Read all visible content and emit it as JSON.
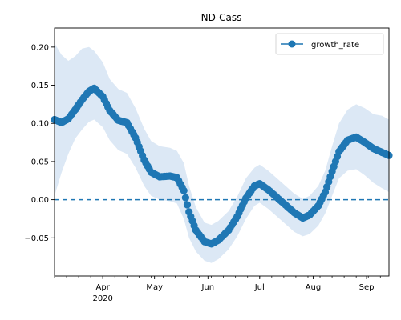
{
  "chart_data": {
    "type": "line",
    "title": "ND-Cass",
    "xlabel": "",
    "ylabel": "",
    "x_start": "2020-03-04",
    "x_end": "2020-09-14",
    "x_ticks": [
      {
        "date": "2020-04-01",
        "label": "Apr",
        "sublabel": "2020"
      },
      {
        "date": "2020-05-01",
        "label": "May",
        "sublabel": ""
      },
      {
        "date": "2020-06-01",
        "label": "Jun",
        "sublabel": ""
      },
      {
        "date": "2020-07-01",
        "label": "Jul",
        "sublabel": ""
      },
      {
        "date": "2020-08-01",
        "label": "Aug",
        "sublabel": ""
      },
      {
        "date": "2020-09-01",
        "label": "Sep",
        "sublabel": ""
      }
    ],
    "ylim": [
      -0.1,
      0.225
    ],
    "y_ticks": [
      {
        "value": -0.05,
        "label": "−0.05"
      },
      {
        "value": 0.0,
        "label": "0.00"
      },
      {
        "value": 0.05,
        "label": "0.05"
      },
      {
        "value": 0.1,
        "label": "0.10"
      },
      {
        "value": 0.15,
        "label": "0.15"
      },
      {
        "value": 0.2,
        "label": "0.20"
      }
    ],
    "reference_line": {
      "y": 0.0,
      "style": "dashed"
    },
    "grid": false,
    "legend": {
      "placement": "top-right",
      "entries": [
        "growth_rate"
      ]
    },
    "colors": {
      "line": "#1f77b4",
      "band": "#dce8f5"
    },
    "series": [
      {
        "name": "growth_rate",
        "marker": "circle",
        "x": [
          "2020-03-04",
          "2020-03-08",
          "2020-03-12",
          "2020-03-16",
          "2020-03-20",
          "2020-03-24",
          "2020-03-27",
          "2020-04-01",
          "2020-04-05",
          "2020-04-10",
          "2020-04-15",
          "2020-04-20",
          "2020-04-25",
          "2020-04-29",
          "2020-05-04",
          "2020-05-10",
          "2020-05-14",
          "2020-05-18",
          "2020-05-21",
          "2020-05-25",
          "2020-05-30",
          "2020-06-03",
          "2020-06-07",
          "2020-06-13",
          "2020-06-18",
          "2020-06-23",
          "2020-06-28",
          "2020-07-01",
          "2020-07-06",
          "2020-07-11",
          "2020-07-16",
          "2020-07-21",
          "2020-07-26",
          "2020-07-30",
          "2020-08-04",
          "2020-08-08",
          "2020-08-12",
          "2020-08-16",
          "2020-08-21",
          "2020-08-26",
          "2020-08-31",
          "2020-09-05",
          "2020-09-10",
          "2020-09-14"
        ],
        "y": [
          0.105,
          0.101,
          0.106,
          0.118,
          0.131,
          0.142,
          0.146,
          0.135,
          0.117,
          0.104,
          0.101,
          0.081,
          0.052,
          0.036,
          0.03,
          0.031,
          0.029,
          0.012,
          -0.016,
          -0.04,
          -0.055,
          -0.058,
          -0.053,
          -0.04,
          -0.022,
          0.002,
          0.018,
          0.021,
          0.013,
          0.003,
          -0.007,
          -0.017,
          -0.024,
          -0.02,
          -0.008,
          0.01,
          0.037,
          0.063,
          0.078,
          0.082,
          0.075,
          0.067,
          0.062,
          0.058
        ],
        "lower": [
          0.005,
          0.035,
          0.06,
          0.08,
          0.092,
          0.102,
          0.105,
          0.095,
          0.078,
          0.065,
          0.06,
          0.042,
          0.018,
          0.005,
          0.0,
          -0.002,
          -0.005,
          -0.025,
          -0.05,
          -0.068,
          -0.08,
          -0.083,
          -0.078,
          -0.065,
          -0.048,
          -0.025,
          -0.008,
          -0.004,
          -0.012,
          -0.022,
          -0.032,
          -0.042,
          -0.048,
          -0.045,
          -0.034,
          -0.018,
          0.005,
          0.028,
          0.038,
          0.04,
          0.032,
          0.022,
          0.015,
          0.01
        ],
        "upper": [
          0.205,
          0.19,
          0.182,
          0.188,
          0.198,
          0.2,
          0.195,
          0.18,
          0.158,
          0.145,
          0.14,
          0.12,
          0.093,
          0.077,
          0.07,
          0.068,
          0.064,
          0.048,
          0.018,
          -0.01,
          -0.03,
          -0.033,
          -0.028,
          -0.015,
          0.004,
          0.028,
          0.042,
          0.046,
          0.038,
          0.028,
          0.018,
          0.008,
          0.001,
          0.005,
          0.018,
          0.038,
          0.07,
          0.1,
          0.118,
          0.125,
          0.12,
          0.112,
          0.11,
          0.105
        ]
      }
    ]
  }
}
